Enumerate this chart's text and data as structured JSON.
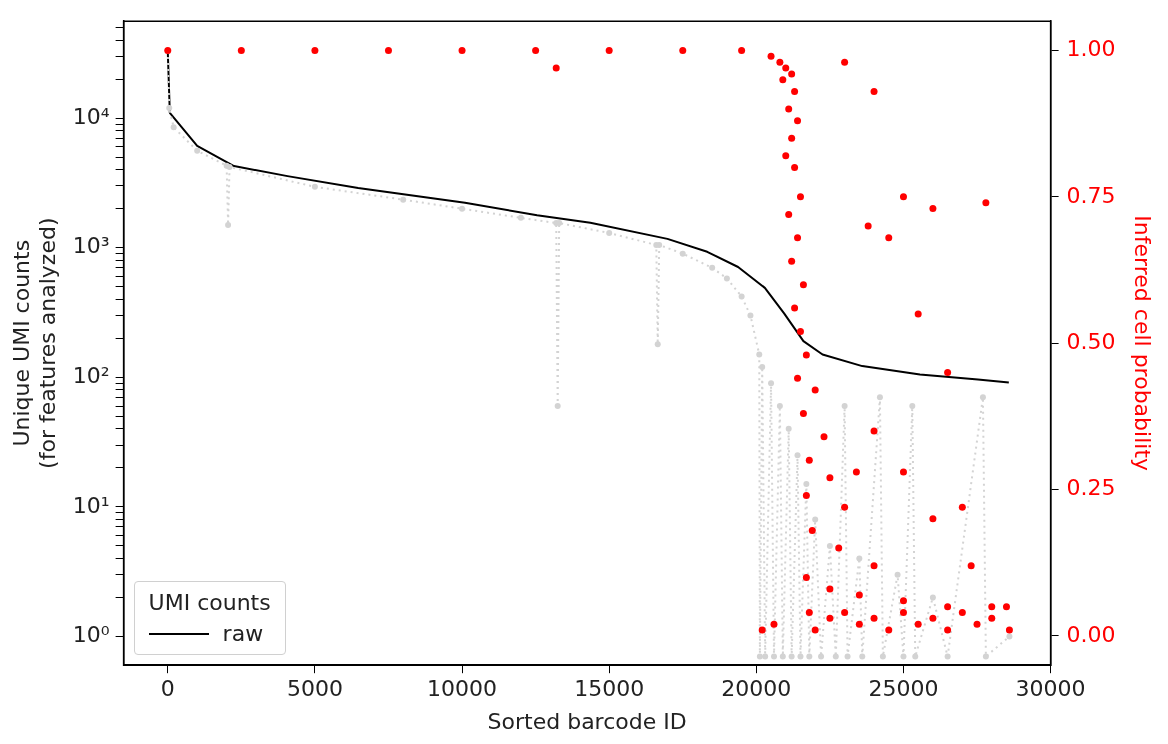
{
  "chart_data": {
    "type": "line",
    "xlabel": "Sorted barcode ID",
    "ylabel": "Unique UMI counts\n(for features analyzed)",
    "y2label": "Inferred cell probability",
    "legend_title": "UMI counts",
    "legend": "bottom left",
    "log": "y",
    "grid": false,
    "xlim": [
      -1500,
      30000
    ],
    "xticks": [
      0,
      5000,
      10000,
      15000,
      20000,
      25000,
      30000
    ],
    "ylim": [
      0.6,
      56000
    ],
    "yticks": [
      {
        "value": 1,
        "label": "10⁰"
      },
      {
        "value": 2,
        "label": null
      },
      {
        "value": 3,
        "label": null
      },
      {
        "value": 4,
        "label": null
      },
      {
        "value": 5,
        "label": null
      },
      {
        "value": 6,
        "label": null
      },
      {
        "value": 7,
        "label": null
      },
      {
        "value": 8,
        "label": null
      },
      {
        "value": 9,
        "label": null
      },
      {
        "value": 10,
        "label": "10¹"
      },
      {
        "value": 20,
        "label": null
      },
      {
        "value": 30,
        "label": null
      },
      {
        "value": 40,
        "label": null
      },
      {
        "value": 50,
        "label": null
      },
      {
        "value": 60,
        "label": null
      },
      {
        "value": 70,
        "label": null
      },
      {
        "value": 80,
        "label": null
      },
      {
        "value": 90,
        "label": null
      },
      {
        "value": 100,
        "label": "10²"
      },
      {
        "value": 200,
        "label": null
      },
      {
        "value": 300,
        "label": null
      },
      {
        "value": 400,
        "label": null
      },
      {
        "value": 500,
        "label": null
      },
      {
        "value": 600,
        "label": null
      },
      {
        "value": 700,
        "label": null
      },
      {
        "value": 800,
        "label": null
      },
      {
        "value": 900,
        "label": null
      },
      {
        "value": 1000,
        "label": "10³"
      },
      {
        "value": 2000,
        "label": null
      },
      {
        "value": 3000,
        "label": null
      },
      {
        "value": 4000,
        "label": null
      },
      {
        "value": 5000,
        "label": null
      },
      {
        "value": 6000,
        "label": null
      },
      {
        "value": 7000,
        "label": null
      },
      {
        "value": 8000,
        "label": null
      },
      {
        "value": 9000,
        "label": null
      },
      {
        "value": 10000,
        "label": "10⁴"
      },
      {
        "value": 20000,
        "label": null
      },
      {
        "value": 30000,
        "label": null
      },
      {
        "value": 40000,
        "label": null
      },
      {
        "value": 50000,
        "label": null
      }
    ],
    "y2lim": [
      -0.05,
      1.05
    ],
    "y2ticks": [
      {
        "value": 0,
        "label": "0.00"
      },
      {
        "value": 0.25,
        "label": "0.25"
      },
      {
        "value": 0.5,
        "label": "0.50"
      },
      {
        "value": 0.75,
        "label": "0.75"
      },
      {
        "value": 1,
        "label": "1.00"
      }
    ],
    "series": [
      {
        "color": "#d3d3d3",
        "line_style": "dotted",
        "marker": "circle",
        "x": [
          0,
          50,
          200,
          1000,
          2000,
          2050,
          2100,
          5000,
          8000,
          10000,
          12000,
          13200,
          13250,
          13300,
          15000,
          16600,
          16650,
          16700,
          17500,
          18500,
          19000,
          19500,
          19800,
          20100,
          20120,
          20200,
          20300,
          20500,
          20600,
          20800,
          20900,
          21100,
          21200,
          21400,
          21500,
          21700,
          21800,
          22000,
          22200,
          22500,
          22700,
          23000,
          23100,
          23500,
          23600,
          24200,
          24300,
          24800,
          25000,
          25300,
          25400,
          26000,
          26500,
          27700,
          27800,
          28600
        ],
        "values": [
          33000,
          12000,
          8500,
          5600,
          4300,
          1500,
          4200,
          2950,
          2350,
          2000,
          1700,
          1550,
          60,
          1550,
          1300,
          1050,
          180,
          1050,
          900,
          700,
          580,
          420,
          300,
          150,
          0.7,
          120,
          0.7,
          90,
          0.7,
          60,
          0.7,
          40,
          0.7,
          25,
          0.7,
          15,
          0.7,
          8,
          0.7,
          5,
          0.7,
          60,
          0.7,
          4,
          0.7,
          70,
          0.7,
          3,
          0.7,
          60,
          0.7,
          2,
          0.7,
          70,
          0.7,
          1
        ]
      },
      {
        "name": "raw",
        "color": "#000000",
        "line_style": "solid",
        "marker": "none",
        "x": [
          0,
          70,
          1000,
          2250,
          4070,
          6470,
          10100,
          12550,
          14360,
          16980,
          18330,
          19380,
          20290,
          20950,
          21600,
          22250,
          23600,
          25560,
          27530,
          28580
        ],
        "values": [
          33000,
          11000,
          6100,
          4270,
          3570,
          2890,
          2220,
          1780,
          1560,
          1170,
          930,
          710,
          490,
          310,
          190,
          150,
          122,
          105,
          96,
          91
        ]
      },
      {
        "type": "scatter",
        "axis": "y2",
        "color": "#ff0000",
        "marker": "circle",
        "x": [
          0,
          2500,
          5000,
          7500,
          10000,
          12500,
          15000,
          17500,
          19500,
          20500,
          20800,
          21000,
          21200,
          20900,
          21300,
          21100,
          21400,
          21200,
          21000,
          21300,
          21500,
          21100,
          21400,
          21200,
          21600,
          21300,
          21500,
          21700,
          21400,
          22000,
          21600,
          22300,
          21800,
          22500,
          21700,
          23000,
          21900,
          22800,
          24000,
          21700,
          22500,
          23500,
          25000,
          26500,
          28000,
          21800,
          22500,
          23500,
          24500,
          25500,
          26500,
          27500,
          28600,
          22000,
          23000,
          24000,
          25000,
          26000,
          27000,
          28000,
          28500,
          20200,
          20600,
          23000,
          24000,
          23800,
          25000,
          26000,
          27800,
          24500,
          25500,
          26500,
          27000,
          26000,
          27300,
          24000,
          23400,
          25000,
          13200
        ],
        "values": [
          1,
          1,
          1,
          1,
          1,
          1,
          1,
          1,
          1,
          0.99,
          0.98,
          0.97,
          0.96,
          0.95,
          0.93,
          0.9,
          0.88,
          0.85,
          0.82,
          0.8,
          0.75,
          0.72,
          0.68,
          0.64,
          0.6,
          0.56,
          0.52,
          0.48,
          0.44,
          0.42,
          0.38,
          0.34,
          0.3,
          0.27,
          0.24,
          0.22,
          0.18,
          0.15,
          0.12,
          0.1,
          0.08,
          0.07,
          0.06,
          0.05,
          0.05,
          0.04,
          0.03,
          0.02,
          0.01,
          0.02,
          0.01,
          0.02,
          0.01,
          0.01,
          0.04,
          0.03,
          0.04,
          0.03,
          0.04,
          0.03,
          0.05,
          0.01,
          0.02,
          0.98,
          0.93,
          0.7,
          0.75,
          0.73,
          0.74,
          0.68,
          0.55,
          0.45,
          0.22,
          0.2,
          0.12,
          0.35,
          0.28,
          0.28,
          0.97
        ]
      }
    ]
  }
}
